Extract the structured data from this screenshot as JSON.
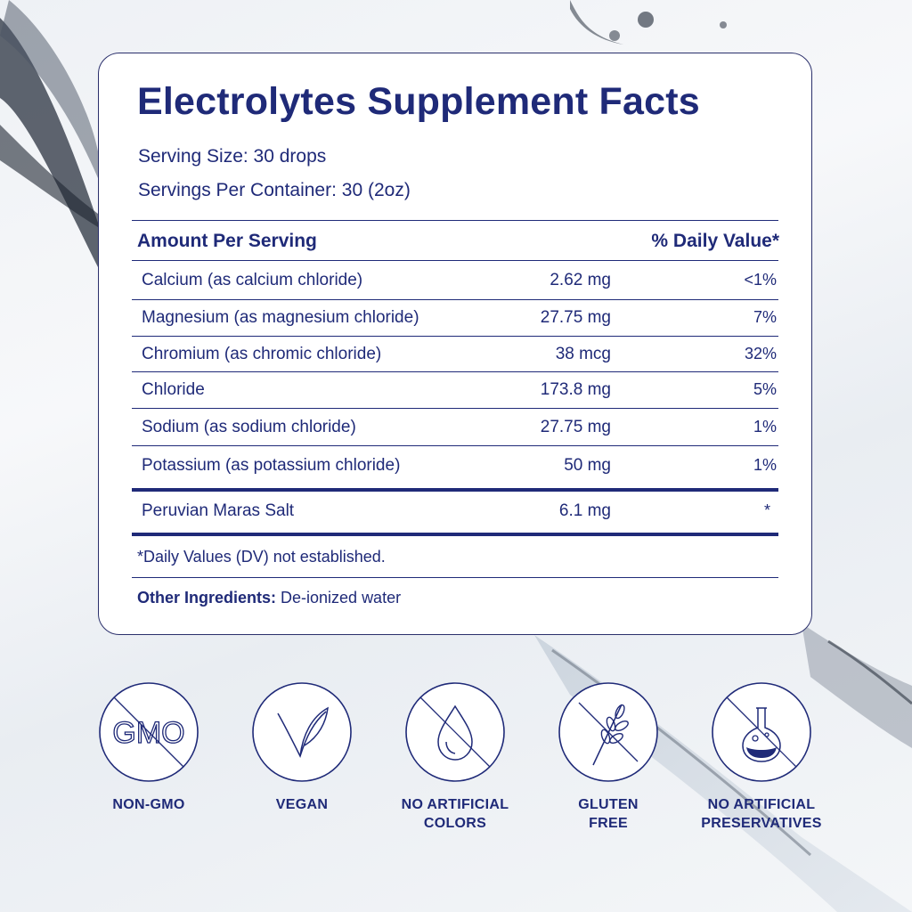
{
  "panel": {
    "title": "Electrolytes Supplement Facts",
    "serving_size": "Serving Size: 30 drops",
    "servings_per_container": "Servings Per Container: 30 (2oz)",
    "header_amount": "Amount Per Serving",
    "header_dv": "% Daily Value*",
    "rows": [
      {
        "name": "Calcium (as calcium chloride)",
        "amount": "2.62 mg",
        "dv": "<1%"
      },
      {
        "name": "Magnesium (as magnesium chloride)",
        "amount": "27.75 mg",
        "dv": "7%"
      },
      {
        "name": "Chromium (as chromic chloride)",
        "amount": "38 mcg",
        "dv": "32%"
      },
      {
        "name": "Chloride",
        "amount": "173.8 mg",
        "dv": "5%"
      },
      {
        "name": "Sodium (as sodium chloride)",
        "amount": "27.75 mg",
        "dv": "1%"
      },
      {
        "name": "Potassium (as potassium chloride)",
        "amount": "50 mg",
        "dv": "1%"
      }
    ],
    "extra_row": {
      "name": "Peruvian Maras Salt",
      "amount": "6.1 mg",
      "dv": "*"
    },
    "dv_note": "*Daily Values (DV) not established.",
    "other_label": "Other Ingredients:",
    "other_value": " De-ionized water"
  },
  "badges": [
    {
      "icon": "non-gmo-icon",
      "icon_text": "GMO",
      "line1": "NON-GMO",
      "line2": ""
    },
    {
      "icon": "vegan-leaf-icon",
      "line1": "VEGAN",
      "line2": ""
    },
    {
      "icon": "no-artificial-colors-drop-icon",
      "line1": "NO ARTIFICIAL",
      "line2": "COLORS"
    },
    {
      "icon": "gluten-free-wheat-icon",
      "line1": "GLUTEN",
      "line2": "FREE"
    },
    {
      "icon": "no-preservatives-flask-icon",
      "line1": "NO ARTIFICIAL",
      "line2": "PRESERVATIVES"
    }
  ],
  "colors": {
    "navy": "#1f2a78",
    "background": "#eef1f5"
  }
}
